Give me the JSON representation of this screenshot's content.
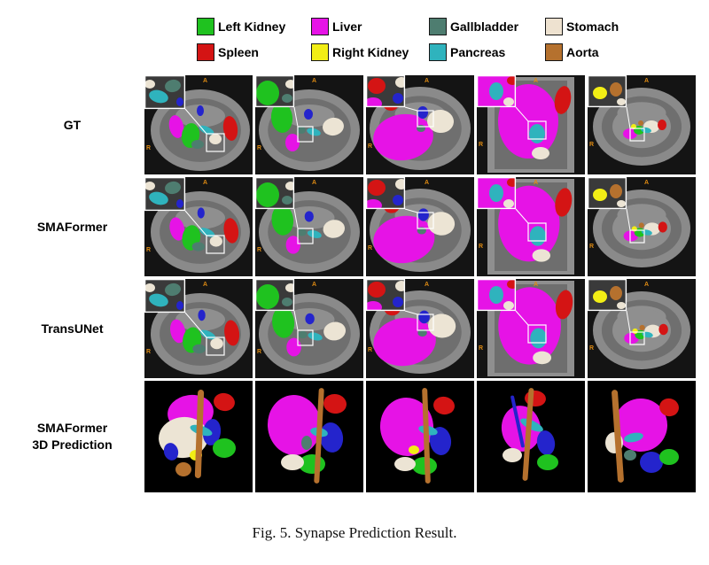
{
  "legend": {
    "items": [
      {
        "label": "Left Kidney",
        "color": "#1fc21f"
      },
      {
        "label": "Liver",
        "color": "#e613e6"
      },
      {
        "label": "Gallbladder",
        "color": "#4e7d70"
      },
      {
        "label": "Stomach",
        "color": "#eee2d0"
      },
      {
        "label": "Spleen",
        "color": "#d41414"
      },
      {
        "label": "Right Kidney",
        "color": "#f2ee15"
      },
      {
        "label": "Pancreas",
        "color": "#2fb3bd"
      },
      {
        "label": "Aorta",
        "color": "#b5712e"
      }
    ]
  },
  "rows": [
    {
      "label": "GT"
    },
    {
      "label": "SMAFormer"
    },
    {
      "label": "TransUNet"
    },
    {
      "label": "SMAFormer 3D Prediction",
      "lines": [
        "SMAFormer",
        "3D Prediction"
      ]
    }
  ],
  "grid": {
    "rows": 4,
    "columns": 5
  },
  "orientation_markers": {
    "anterior": "A",
    "right": "R"
  },
  "extra_colors": {
    "vein_blue": "#2424cc",
    "scan_background": "#141414",
    "body_gray": "#8a8a8a",
    "marker_orange": "#dd8a12"
  },
  "caption": "Fig. 5. Synapse Prediction Result."
}
